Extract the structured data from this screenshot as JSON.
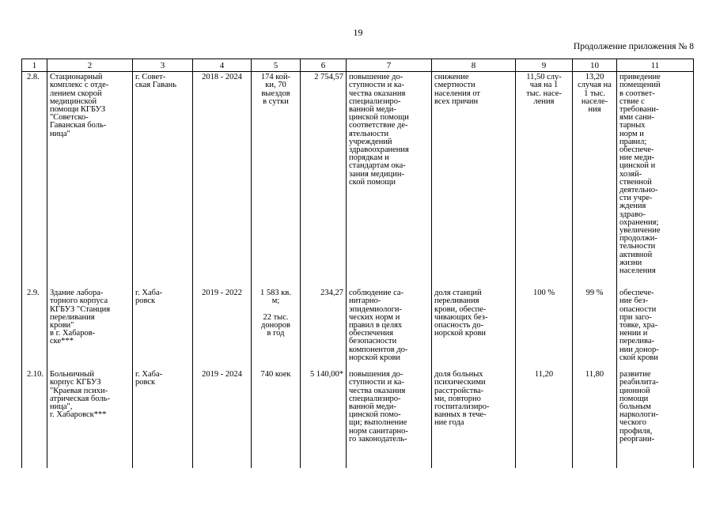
{
  "page": {
    "number": "19",
    "appendix_note": "Продолжение приложения № 8"
  },
  "table": {
    "headers": [
      "1",
      "2",
      "3",
      "4",
      "5",
      "6",
      "7",
      "8",
      "9",
      "10",
      "11"
    ],
    "rows": [
      {
        "c1": "2.8.",
        "c2": "Стационарный\nкомплекс с отде-\nлением скорой\nмедицинской\nпомощи КГБУЗ\n\"Советско-\nГаванская боль-\nница\"",
        "c3": "г. Совет-\nская Гавань",
        "c4": "2018 - 2024",
        "c5": "174 кой-\nки, 70\nвыездов\nв сутки",
        "c6": "2 754,57",
        "c7": "повышение до-\nступности и ка-\nчества оказания\nспециализиро-\nванной меди-\nцинской помощи\nсоответствие де-\nятельности\nучреждений\nздравоохранения\nпорядкам и\nстандартам ока-\nзания медицин-\nской помощи",
        "c8": "снижение\nсмертности\nнаселения от\nвсех причин",
        "c9": "11,50 слу-\nчая на 1\nтыс. насе-\nления",
        "c10": "13,20\nслучая на\n1 тыс.\nнаселе-\nния",
        "c11": "приведение\nпомещений\nв соответ-\nствие с\nтребовани-\nями сани-\nтарных\nнорм и\nправил;\nобеспече-\nние меди-\nцинской и\nхозяй-\nственной\nдеятельно-\nсти учре-\nждения\nздраво-\nохранения;\nувеличение\nпродолжи-\nтельности\nактивной\nжизни\nнаселения"
      },
      {
        "c1": "2.9.",
        "c2": "Здание лабора-\nторного корпуса\nКГБУЗ \"Станция\nпереливания\nкрови\"\nв г. Хабаров-\nске***",
        "c3": "г. Хаба-\nровск",
        "c4": "2019 - 2022",
        "c5": "1 583 кв.\nм;\n\n22 тыс.\nдоноров\nв год",
        "c6": "234,27",
        "c7": "соблюдение са-\nнитарно-\nэпидемиологи-\nческих норм и\nправил в целях\nобеспечения\nбезопасности\nкомпонентов до-\nнорской крови",
        "c8": "доля станций\nпереливания\nкрови, обеспе-\nчивающих без-\nопасность до-\nнорской крови",
        "c9": "100 %",
        "c10": "99 %",
        "c11": "обеспече-\nние без-\nопасности\nпри заго-\nтовке, хра-\nнении и\nперелива-\nнии донор-\nской крови"
      },
      {
        "c1": "2.10.",
        "c2": "Больничный\nкорпус КГБУЗ\n\"Краевая психи-\nатрическая боль-\nница\",\nг. Хабаровск***",
        "c3": "г. Хаба-\nровск",
        "c4": "2019 - 2024",
        "c5": "740 коек",
        "c6": "5 140,00*",
        "c7": "повышения до-\nступности и ка-\nчества оказания\nспециализиро-\nванной меди-\nцинской помо-\nщи; выполнение\nнорм санитарно-\nго законодатель-",
        "c8": "доля больных\nпсихическими\nрасстройства-\nми, повторно\nгоспитализиро-\nванных в тече-\nние года",
        "c9": "11,20",
        "c10": "11,80",
        "c11": "развитие\nреабилита-\nционной\nпомощи\nбольным\nнаркологи-\nческого\nпрофиля,\nреоргани-"
      }
    ]
  }
}
